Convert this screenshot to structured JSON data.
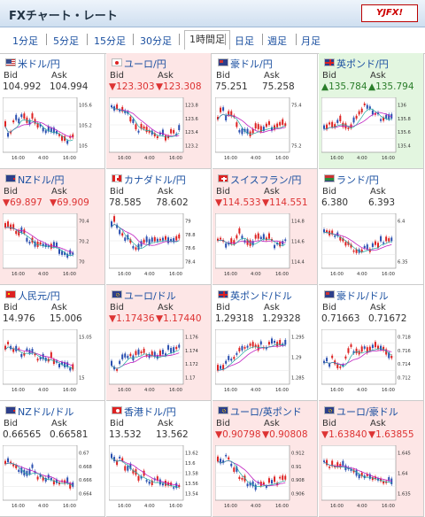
{
  "header": {
    "title": "FXチャート・レート",
    "logo": "YJFX!"
  },
  "tabs": [
    {
      "label": "1分足"
    },
    {
      "label": "5分足"
    },
    {
      "label": "15分足"
    },
    {
      "label": "30分足"
    },
    {
      "label": "1時間足",
      "active": true
    },
    {
      "label": "日足"
    },
    {
      "label": "週足"
    },
    {
      "label": "月足"
    }
  ],
  "labels": {
    "bid": "Bid",
    "ask": "Ask"
  },
  "pairs": [
    {
      "name": "米ドル/円",
      "bid": "104.992",
      "ask": "104.994",
      "dir": "none",
      "flag": "us",
      "y_ticks": [
        "105.6",
        "105.2",
        "105"
      ],
      "x_ticks": [
        "16:00",
        "4:00",
        "16:00"
      ],
      "trend": [
        0.55,
        0.85,
        0.35,
        0.45,
        0.3,
        0.5,
        0.35,
        0.5,
        0.55,
        0.7,
        0.6,
        0.7,
        0.8,
        0.85,
        0.9,
        0.75
      ]
    },
    {
      "name": "ユーロ/円",
      "bid": "▼123.303",
      "ask": "▼123.308",
      "dir": "down",
      "flag": "jp",
      "y_ticks": [
        "123.8",
        "123.6",
        "123.4",
        "123.2"
      ],
      "x_ticks": [
        "16:00",
        "4:00",
        "16:00"
      ],
      "trend": [
        0.15,
        0.2,
        0.25,
        0.2,
        0.35,
        0.55,
        0.7,
        0.6,
        0.75,
        0.7,
        0.85,
        0.75,
        0.8,
        0.75,
        0.7,
        0.65
      ]
    },
    {
      "name": "豪ドル/円",
      "bid": "75.251",
      "ask": "75.258",
      "dir": "none",
      "flag": "au",
      "y_ticks": [
        "75.4",
        "75.2"
      ],
      "x_ticks": [
        "16:00",
        "4:00",
        "16:00"
      ],
      "trend": [
        0.35,
        0.2,
        0.4,
        0.25,
        0.45,
        0.7,
        0.6,
        0.8,
        0.65,
        0.55,
        0.65,
        0.5,
        0.6,
        0.55,
        0.45,
        0.5
      ]
    },
    {
      "name": "英ポンド/円",
      "bid": "▲135.784",
      "ask": "▲135.794",
      "dir": "up",
      "flag": "uk",
      "y_ticks": [
        "136",
        "135.8",
        "135.6",
        "135.4"
      ],
      "x_ticks": [
        "16:00",
        "4:00",
        "16:00"
      ],
      "trend": [
        0.6,
        0.55,
        0.55,
        0.5,
        0.45,
        0.65,
        0.55,
        0.35,
        0.3,
        0.1,
        0.15,
        0.35,
        0.25,
        0.45,
        0.35,
        0.4
      ]
    },
    {
      "name": "NZドル/円",
      "bid": "▼69.897",
      "ask": "▼69.909",
      "dir": "down",
      "flag": "nz",
      "y_ticks": [
        "70.4",
        "70.2",
        "70"
      ],
      "x_ticks": [
        "16:00",
        "4:00",
        "16:00"
      ],
      "trend": [
        0.25,
        0.15,
        0.3,
        0.4,
        0.35,
        0.5,
        0.55,
        0.6,
        0.55,
        0.65,
        0.7,
        0.6,
        0.8,
        0.75,
        0.85,
        0.8
      ]
    },
    {
      "name": "カナダドル/円",
      "bid": "78.585",
      "ask": "78.602",
      "dir": "none",
      "flag": "ca",
      "y_ticks": [
        "79",
        "78.8",
        "78.6",
        "78.4"
      ],
      "x_ticks": [
        "16:00",
        "4:00",
        "16:00"
      ],
      "trend": [
        0.15,
        0.1,
        0.35,
        0.5,
        0.55,
        0.7,
        0.75,
        0.6,
        0.55,
        0.5,
        0.45,
        0.55,
        0.5,
        0.5,
        0.55,
        0.5
      ]
    },
    {
      "name": "スイスフラン/円",
      "bid": "▼114.533",
      "ask": "▼114.551",
      "dir": "down",
      "flag": "ch",
      "y_ticks": [
        "114.8",
        "114.6",
        "114.4"
      ],
      "x_ticks": [
        "16:00",
        "4:00",
        "16:00"
      ],
      "trend": [
        0.5,
        0.4,
        0.7,
        0.55,
        0.5,
        0.35,
        0.5,
        0.65,
        0.55,
        0.4,
        0.5,
        0.45,
        0.55,
        0.65,
        0.55,
        0.5
      ]
    },
    {
      "name": "ランド/円",
      "bid": "6.380",
      "ask": "6.393",
      "dir": "none",
      "flag": "za",
      "y_ticks": [
        "6.4",
        "6.35"
      ],
      "x_ticks": [
        "16:00",
        "4:00",
        "16:00"
      ],
      "trend": [
        0.35,
        0.3,
        0.4,
        0.35,
        0.5,
        0.6,
        0.65,
        0.75,
        0.8,
        0.7,
        0.75,
        0.65,
        0.6,
        0.55,
        0.5,
        0.45
      ]
    },
    {
      "name": "人民元/円",
      "bid": "14.976",
      "ask": "15.006",
      "dir": "none",
      "flag": "cn",
      "y_ticks": [
        "15.05",
        "15"
      ],
      "x_ticks": [
        "16:00",
        "4:00",
        "16:00"
      ],
      "trend": [
        0.3,
        0.25,
        0.35,
        0.4,
        0.5,
        0.35,
        0.45,
        0.55,
        0.5,
        0.6,
        0.55,
        0.65,
        0.7,
        0.75,
        0.8,
        0.8
      ]
    },
    {
      "name": "ユーロ/ドル",
      "bid": "▼1.17436",
      "ask": "▼1.17440",
      "dir": "down",
      "flag": "eu",
      "y_ticks": [
        "1.176",
        "1.174",
        "1.172",
        "1.17"
      ],
      "x_ticks": [
        "16:00",
        "4:00",
        "16:00"
      ],
      "trend": [
        0.7,
        0.8,
        0.6,
        0.55,
        0.45,
        0.55,
        0.4,
        0.45,
        0.5,
        0.45,
        0.55,
        0.5,
        0.45,
        0.35,
        0.4,
        0.25
      ]
    },
    {
      "name": "英ポンド/ドル",
      "bid": "1.29318",
      "ask": "1.29328",
      "dir": "none",
      "flag": "uk",
      "y_ticks": [
        "1.295",
        "1.29",
        "1.285"
      ],
      "x_ticks": [
        "16:00",
        "4:00",
        "16:00"
      ],
      "trend": [
        0.85,
        0.75,
        0.65,
        0.6,
        0.45,
        0.35,
        0.3,
        0.25,
        0.35,
        0.3,
        0.25,
        0.3,
        0.2,
        0.25,
        0.3,
        0.25
      ]
    },
    {
      "name": "豪ドル/ドル",
      "bid": "0.71663",
      "ask": "0.71672",
      "dir": "none",
      "flag": "au",
      "y_ticks": [
        "0.718",
        "0.716",
        "0.714",
        "0.712"
      ],
      "x_ticks": [
        "16:00",
        "4:00",
        "16:00"
      ],
      "trend": [
        0.6,
        0.7,
        0.55,
        0.75,
        0.7,
        0.55,
        0.3,
        0.4,
        0.45,
        0.35,
        0.4,
        0.3,
        0.35,
        0.4,
        0.45,
        0.5
      ]
    },
    {
      "name": "NZドル/ドル",
      "bid": "0.66565",
      "ask": "0.66581",
      "dir": "none",
      "flag": "nz",
      "y_ticks": [
        "0.67",
        "0.668",
        "0.666",
        "0.664"
      ],
      "x_ticks": [
        "16:00",
        "4:00",
        "16:00"
      ],
      "trend": [
        0.3,
        0.2,
        0.35,
        0.45,
        0.5,
        0.55,
        0.45,
        0.6,
        0.65,
        0.7,
        0.6,
        0.75,
        0.8,
        0.7,
        0.8,
        0.85
      ]
    },
    {
      "name": "香港ドル/円",
      "bid": "13.532",
      "ask": "13.562",
      "dir": "none",
      "flag": "hk",
      "y_ticks": [
        "13.62",
        "13.6",
        "13.58",
        "13.56",
        "13.54"
      ],
      "x_ticks": [
        "16:00",
        "4:00",
        "16:00"
      ],
      "trend": [
        0.2,
        0.3,
        0.15,
        0.4,
        0.45,
        0.55,
        0.65,
        0.6,
        0.7,
        0.75,
        0.7,
        0.8,
        0.85,
        0.8,
        0.85,
        0.8
      ]
    },
    {
      "name": "ユーロ/英ポンド",
      "bid": "▼0.90798",
      "ask": "▼0.90808",
      "dir": "down",
      "flag": "eu",
      "y_ticks": [
        "0.912",
        "0.91",
        "0.908",
        "0.906"
      ],
      "x_ticks": [
        "16:00",
        "4:00",
        "16:00"
      ],
      "trend": [
        0.2,
        0.25,
        0.15,
        0.4,
        0.5,
        0.6,
        0.7,
        0.8,
        0.85,
        0.8,
        0.75,
        0.8,
        0.7,
        0.75,
        0.65,
        0.7
      ]
    },
    {
      "name": "ユーロ/豪ドル",
      "bid": "▼1.63840",
      "ask": "▼1.63855",
      "dir": "down",
      "flag": "eu",
      "y_ticks": [
        "1.645",
        "1.64",
        "1.635"
      ],
      "x_ticks": [
        "16:00",
        "4:00",
        "16:00"
      ],
      "trend": [
        0.25,
        0.35,
        0.3,
        0.4,
        0.35,
        0.45,
        0.5,
        0.55,
        0.6,
        0.65,
        0.55,
        0.7,
        0.65,
        0.75,
        0.7,
        0.75
      ]
    }
  ]
}
